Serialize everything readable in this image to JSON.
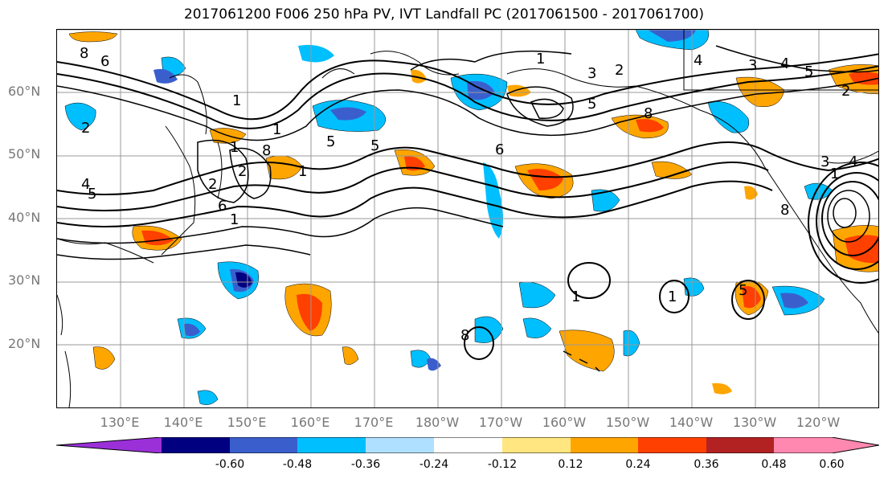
{
  "title": "2017061200 F006 250 hPa PV, IVT Landfall PC (2017061500 - 2017061700)",
  "lat_labels": [
    "60°N",
    "50°N",
    "40°N",
    "30°N",
    "20°N"
  ],
  "lon_labels": [
    "130°E",
    "140°E",
    "150°E",
    "160°E",
    "170°E",
    "180°W",
    "170°W",
    "160°W",
    "150°W",
    "140°W",
    "130°W",
    "120°W"
  ],
  "contour_labels": [
    "8",
    "6",
    "1",
    "2",
    "4",
    "5",
    "1",
    "2",
    "1",
    "8",
    "5",
    "1",
    "6",
    "2",
    "5",
    "1",
    "2",
    "3",
    "4",
    "3",
    "4",
    "5",
    "5",
    "8",
    "2",
    "3",
    "4",
    "1",
    "1",
    "1",
    "1",
    "5",
    "8",
    "6",
    "8"
  ],
  "colorbar": {
    "ticks": [
      "-0.60",
      "-0.48",
      "-0.36",
      "-0.24",
      "-0.12",
      "0.12",
      "0.24",
      "0.36",
      "0.48",
      "0.60"
    ],
    "colors": [
      "#9b30d9",
      "#000080",
      "#3a5fcd",
      "#00bfff",
      "#b0e0ff",
      "#ffffff",
      "#ffe680",
      "#ffa500",
      "#ff4000",
      "#b22222",
      "#ff88b0",
      "#ff88b0"
    ]
  },
  "colors": {
    "contour": "#000000",
    "grid": "#999999",
    "coast": "#000000"
  }
}
